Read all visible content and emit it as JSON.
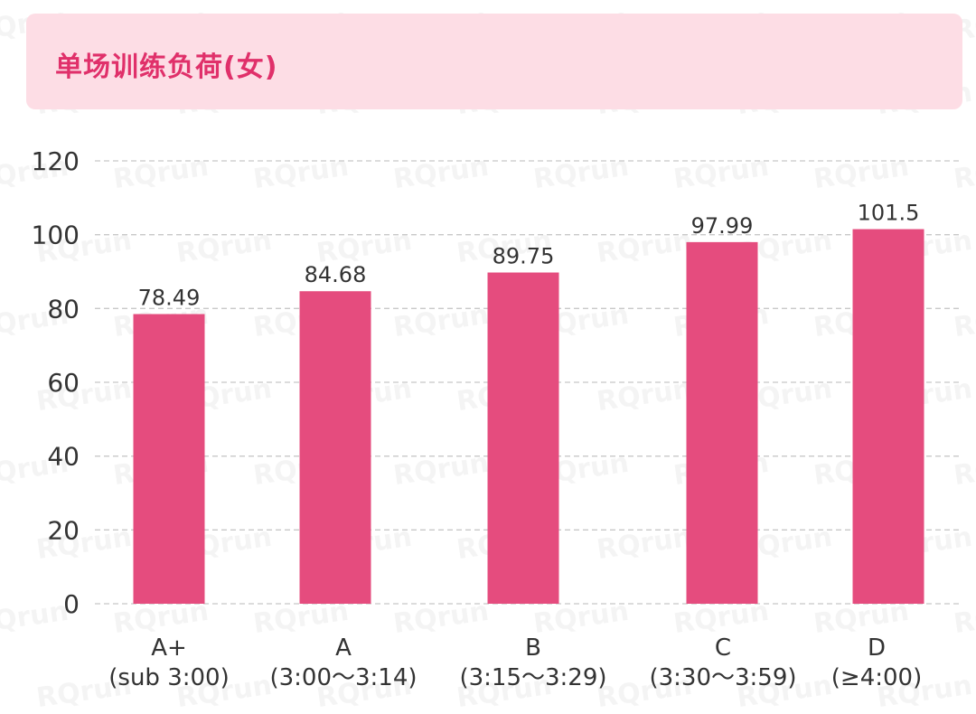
{
  "watermark": "RQrun",
  "chart_data": {
    "type": "bar",
    "title": "单场训练负荷(女)",
    "categories": [
      [
        "A+",
        "(sub 3:00)"
      ],
      [
        "A",
        "(3:00～3:14)"
      ],
      [
        "B",
        "(3:15～3:29)"
      ],
      [
        "C",
        "(3:30～3:59)"
      ],
      [
        "D",
        "(≥4:00)"
      ]
    ],
    "values": [
      78.49,
      84.68,
      89.75,
      97.99,
      101.5
    ],
    "value_labels": [
      "78.49",
      "84.68",
      "89.75",
      "97.99",
      "101.5"
    ],
    "ylim": [
      0,
      120
    ],
    "yticks": [
      "0",
      "20",
      "40",
      "60",
      "80",
      "100",
      "120"
    ],
    "grid": true,
    "bar_color": "#e54c7e",
    "title_color": "#e0306a",
    "header_background": "#fddde5"
  }
}
